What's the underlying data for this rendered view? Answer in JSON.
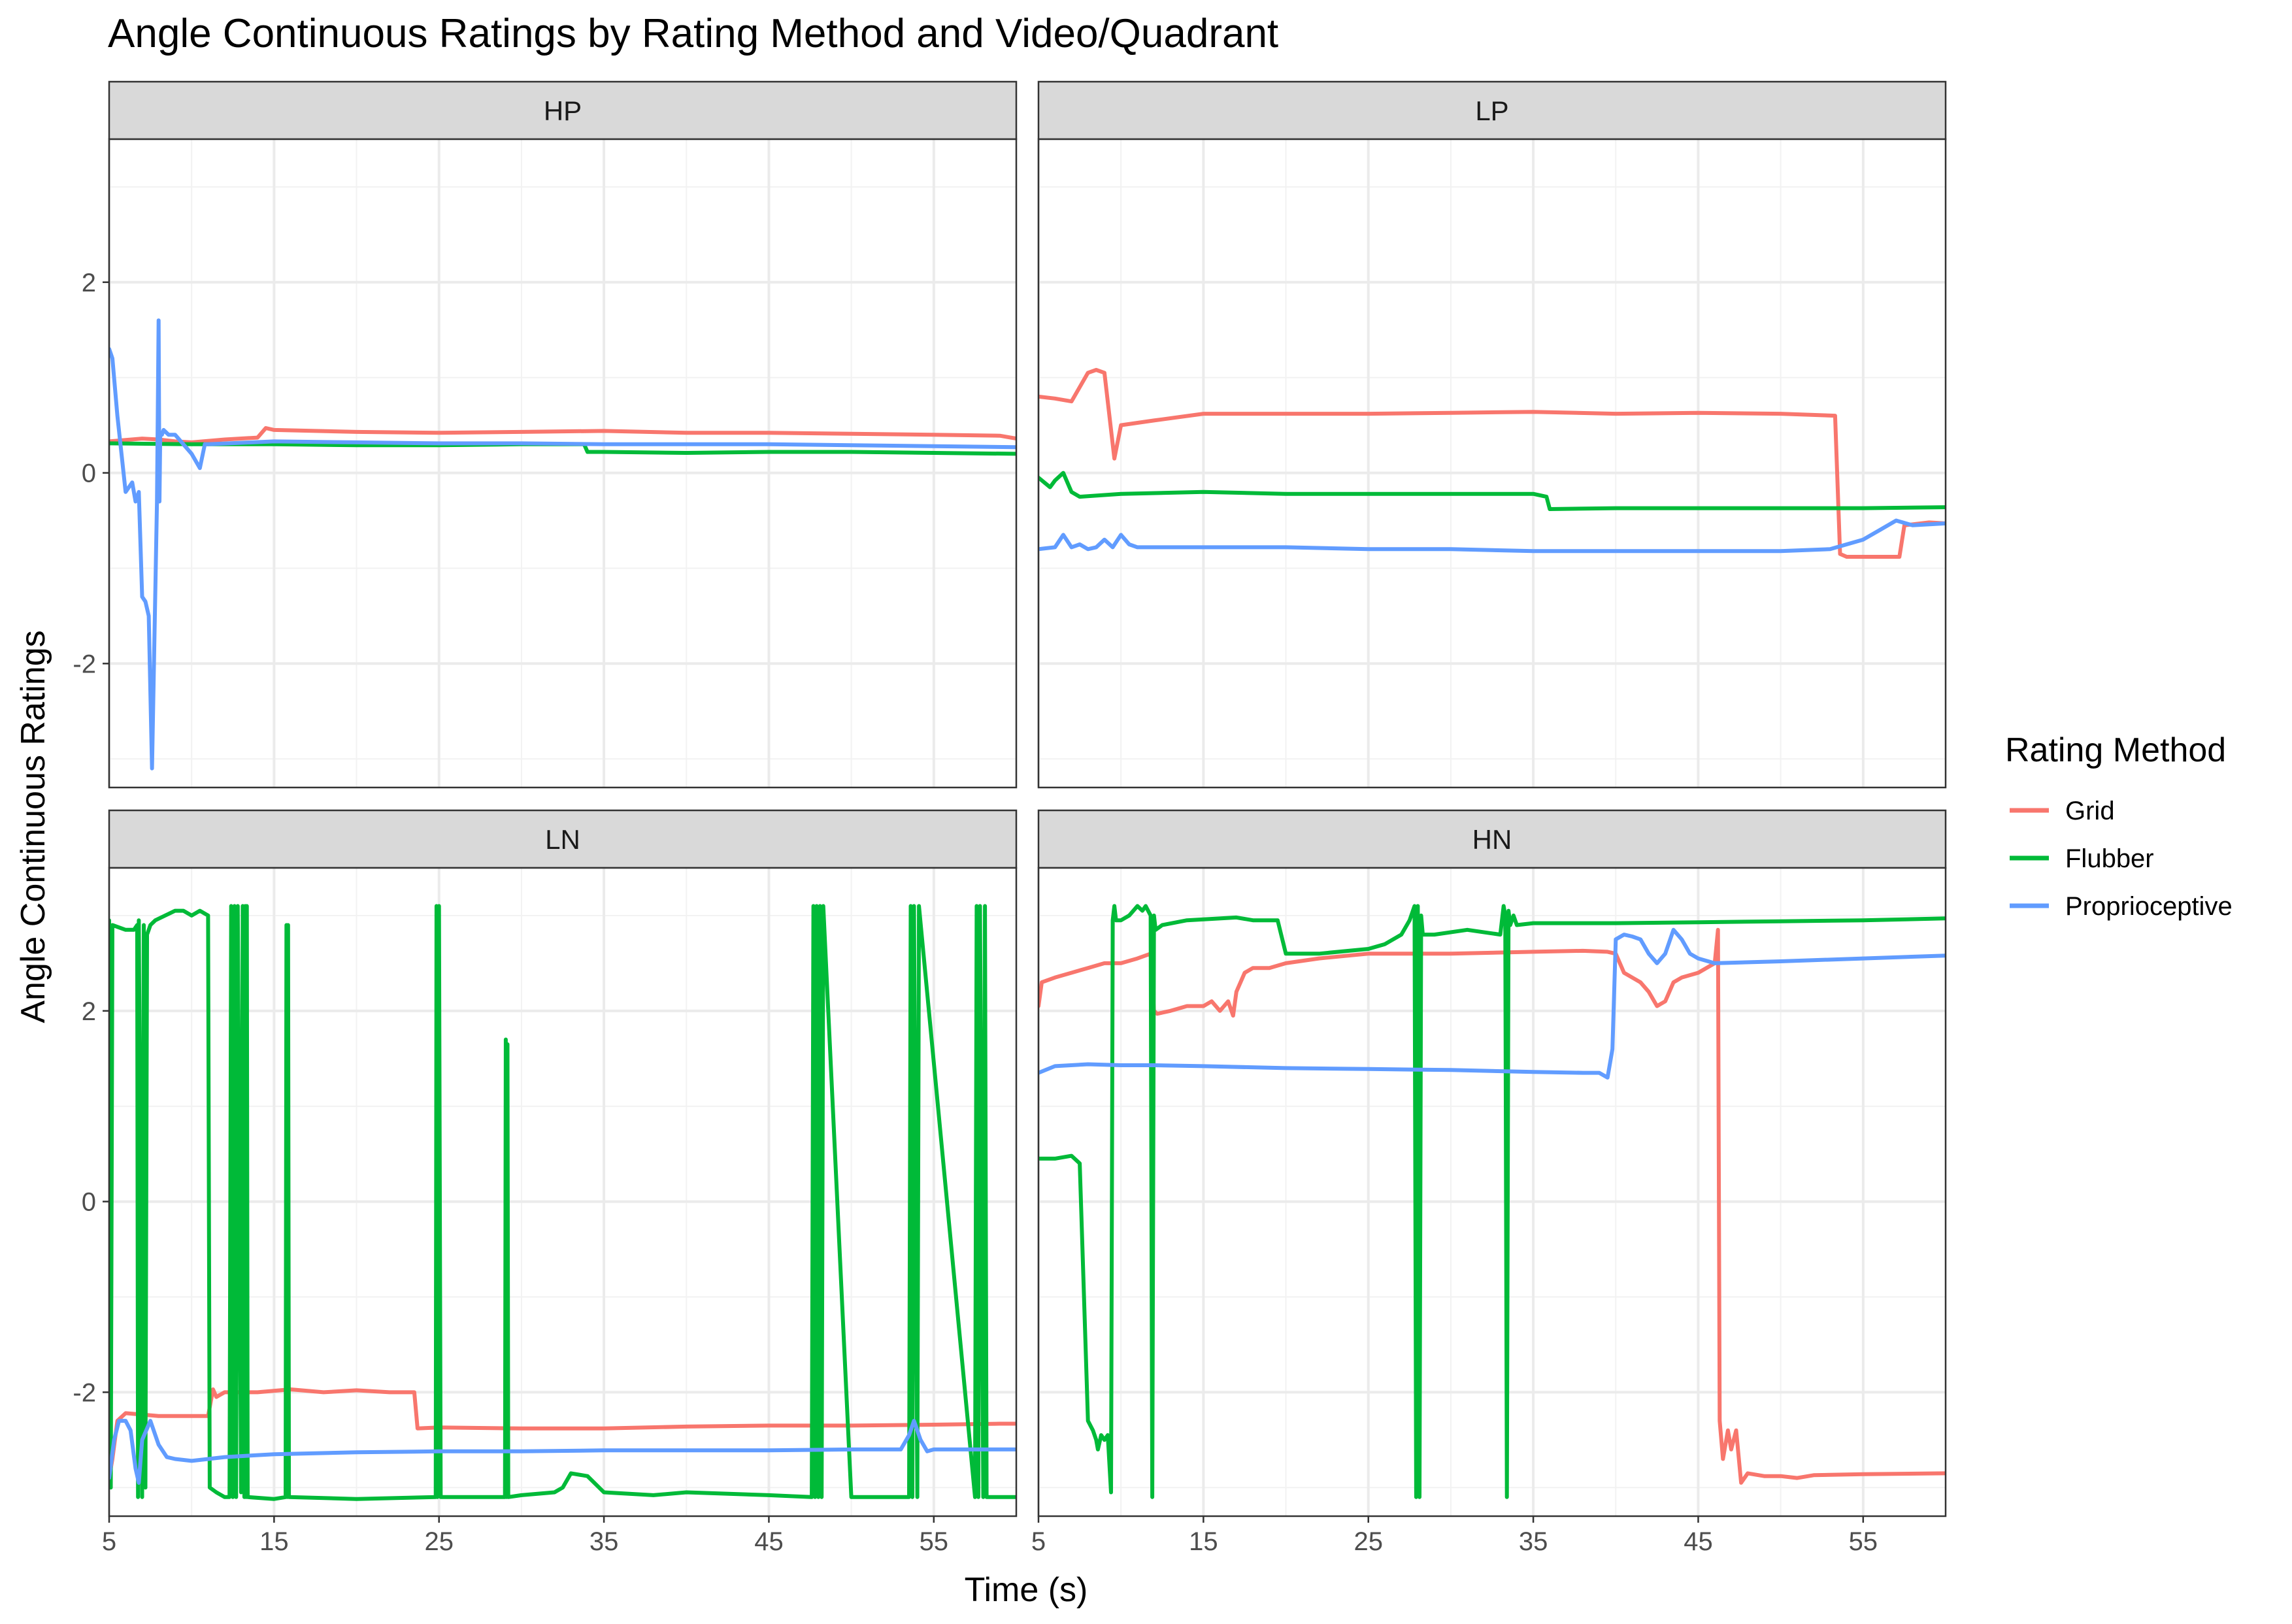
{
  "chart_data": {
    "type": "line",
    "title": "Angle Continuous Ratings by Rating Method and Video/Quadrant",
    "xlabel": "Time (s)",
    "ylabel": "Angle Continuous Ratings",
    "xlim": [
      5,
      60
    ],
    "ylim": [
      -3.3,
      3.5
    ],
    "x_ticks": [
      5,
      15,
      25,
      35,
      45,
      55
    ],
    "x_tick_labels": [
      "5",
      "15",
      "25",
      "35",
      "45",
      "55"
    ],
    "y_ticks": [
      -2,
      0,
      2
    ],
    "y_tick_labels": [
      "-2",
      "0",
      "2"
    ],
    "grid": true,
    "legend": {
      "title": "Rating Method",
      "position": "right",
      "entries": [
        "Grid",
        "Flubber",
        "Proprioceptive"
      ]
    },
    "series_colors": {
      "Grid": "#F8766D",
      "Flubber": "#00BA38",
      "Proprioceptive": "#619CFF"
    },
    "panels": [
      {
        "label": "HP",
        "series": [
          {
            "name": "Grid",
            "x": [
              5,
              7,
              8,
              9,
              10,
              12,
              14,
              14.5,
              15,
              20,
              25,
              30,
              35,
              40,
              45,
              50,
              55,
              59,
              60
            ],
            "y": [
              0.33,
              0.36,
              0.35,
              0.33,
              0.32,
              0.35,
              0.37,
              0.47,
              0.45,
              0.43,
              0.42,
              0.43,
              0.44,
              0.42,
              0.42,
              0.41,
              0.4,
              0.39,
              0.36
            ]
          },
          {
            "name": "Flubber",
            "x": [
              5,
              10,
              15,
              20,
              25,
              30,
              33.8,
              34,
              35,
              40,
              45,
              50,
              55,
              60
            ],
            "y": [
              0.31,
              0.3,
              0.3,
              0.29,
              0.29,
              0.3,
              0.3,
              0.22,
              0.22,
              0.21,
              0.22,
              0.22,
              0.21,
              0.2
            ]
          },
          {
            "name": "Proprioceptive",
            "x": [
              5,
              5.2,
              5.5,
              6,
              6.4,
              6.6,
              6.8,
              7,
              7.2,
              7.4,
              7.6,
              7.9,
              8,
              8.05,
              8.1,
              8.2,
              8.3,
              8.6,
              9,
              10,
              10.5,
              10.8,
              11,
              15,
              20,
              25,
              30,
              35,
              40,
              45,
              50,
              55,
              60
            ],
            "y": [
              1.3,
              1.2,
              0.6,
              -0.2,
              -0.1,
              -0.3,
              -0.2,
              -1.3,
              -1.35,
              -1.5,
              -3.1,
              -0.3,
              1.6,
              -0.3,
              0.4,
              0.4,
              0.45,
              0.4,
              0.4,
              0.2,
              0.05,
              0.3,
              0.3,
              0.33,
              0.32,
              0.31,
              0.31,
              0.3,
              0.3,
              0.3,
              0.29,
              0.28,
              0.27
            ]
          }
        ]
      },
      {
        "label": "LP",
        "series": [
          {
            "name": "Grid",
            "x": [
              5,
              6,
              7,
              8,
              8.5,
              9,
              9.3,
              9.6,
              10,
              12,
              15,
              20,
              25,
              30,
              35,
              40,
              45,
              50,
              53.3,
              53.6,
              54,
              55,
              56,
              57.2,
              57.5,
              59,
              60
            ],
            "y": [
              0.8,
              0.78,
              0.75,
              1.05,
              1.08,
              1.05,
              0.6,
              0.15,
              0.5,
              0.55,
              0.62,
              0.62,
              0.62,
              0.63,
              0.64,
              0.62,
              0.63,
              0.62,
              0.6,
              -0.85,
              -0.88,
              -0.88,
              -0.88,
              -0.88,
              -0.55,
              -0.52,
              -0.53
            ]
          },
          {
            "name": "Flubber",
            "x": [
              5,
              5.7,
              6,
              6.5,
              7,
              7.5,
              10,
              15,
              20,
              25,
              30,
              35,
              35.8,
              36,
              40,
              45,
              50,
              55,
              60
            ],
            "y": [
              -0.05,
              -0.15,
              -0.08,
              0.0,
              -0.2,
              -0.25,
              -0.22,
              -0.2,
              -0.22,
              -0.22,
              -0.22,
              -0.22,
              -0.25,
              -0.38,
              -0.37,
              -0.37,
              -0.37,
              -0.37,
              -0.36
            ]
          },
          {
            "name": "Proprioceptive",
            "x": [
              5,
              6,
              6.5,
              7,
              7.5,
              8,
              8.5,
              9,
              9.5,
              10,
              10.5,
              11,
              15,
              20,
              25,
              30,
              35,
              40,
              45,
              50,
              53,
              55,
              56,
              57,
              58,
              60
            ],
            "y": [
              -0.8,
              -0.78,
              -0.65,
              -0.78,
              -0.75,
              -0.8,
              -0.78,
              -0.7,
              -0.78,
              -0.65,
              -0.75,
              -0.78,
              -0.78,
              -0.78,
              -0.8,
              -0.8,
              -0.82,
              -0.82,
              -0.82,
              -0.82,
              -0.8,
              -0.7,
              -0.6,
              -0.5,
              -0.55,
              -0.53
            ]
          }
        ]
      },
      {
        "label": "LN",
        "series": [
          {
            "name": "Grid",
            "x": [
              5,
              5.2,
              5.5,
              6,
              8,
              9,
              10,
              11,
              11.3,
              11.5,
              12,
              14,
              16,
              18,
              20,
              22,
              23.5,
              23.7,
              25,
              30,
              35,
              40,
              45,
              50,
              55,
              59,
              60
            ],
            "y": [
              -2.9,
              -2.7,
              -2.3,
              -2.22,
              -2.25,
              -2.25,
              -2.25,
              -2.25,
              -1.97,
              -2.05,
              -2.0,
              -2.0,
              -1.97,
              -2.0,
              -1.98,
              -2.0,
              -2.0,
              -2.38,
              -2.37,
              -2.38,
              -2.38,
              -2.36,
              -2.35,
              -2.35,
              -2.34,
              -2.33,
              -2.33
            ]
          },
          {
            "name": "Flubber",
            "x": [
              5,
              5.1,
              5.2,
              6,
              6.5,
              6.7,
              6.75,
              6.8,
              7,
              7.1,
              7.2,
              7.3,
              7.4,
              7.5,
              7.8,
              9,
              9.5,
              10,
              10.5,
              11,
              11.1,
              11.5,
              12,
              12.3,
              12.4,
              12.5,
              12.6,
              12.7,
              12.8,
              13,
              13.1,
              13.2,
              13.25,
              13.3,
              13.35,
              13.4,
              15,
              15.7,
              15.75,
              15.8,
              15.85,
              15.9,
              20,
              24.8,
              24.85,
              24.9,
              25,
              25.1,
              27,
              29,
              29.05,
              29.1,
              29.15,
              29.2,
              30,
              32,
              32.5,
              33,
              34,
              35,
              38,
              40,
              45,
              47.6,
              47.7,
              47.8,
              47.9,
              48,
              48.1,
              48.2,
              48.3,
              50,
              53.5,
              53.6,
              53.7,
              53.8,
              54,
              54.1,
              57.5,
              57.6,
              57.7,
              57.8,
              58,
              58.1,
              58.2,
              60
            ],
            "y": [
              2.95,
              -3.0,
              2.9,
              2.85,
              2.85,
              2.9,
              -3.1,
              2.95,
              -3.1,
              2.9,
              -3.0,
              2.8,
              2.85,
              2.9,
              2.95,
              3.05,
              3.05,
              3.0,
              3.05,
              3.0,
              -3.0,
              -3.05,
              -3.1,
              -3.1,
              3.1,
              -3.1,
              3.1,
              -3.1,
              3.1,
              -3.05,
              3.1,
              -3.1,
              3.1,
              -3.1,
              3.1,
              -3.1,
              -3.12,
              -3.1,
              2.9,
              -3.1,
              2.9,
              -3.1,
              -3.12,
              -3.1,
              3.1,
              -3.1,
              3.1,
              -3.1,
              -3.1,
              -3.1,
              1.7,
              -3.1,
              1.65,
              -3.1,
              -3.08,
              -3.05,
              -3.0,
              -2.85,
              -2.88,
              -3.05,
              -3.08,
              -3.05,
              -3.08,
              -3.1,
              3.1,
              -3.1,
              3.1,
              -3.1,
              3.1,
              -3.1,
              3.1,
              -3.1,
              -3.1,
              3.1,
              -3.1,
              3.1,
              -3.1,
              3.1,
              -3.1,
              3.1,
              -3.1,
              3.1,
              -3.1,
              3.1,
              -3.1,
              -3.1
            ]
          },
          {
            "name": "Proprioceptive",
            "x": [
              5,
              5.3,
              5.6,
              6,
              6.3,
              6.6,
              6.8,
              7,
              7.5,
              8,
              8.5,
              9,
              10,
              12,
              15,
              20,
              25,
              30,
              35,
              40,
              45,
              50,
              53,
              53.5,
              53.8,
              54.2,
              54.6,
              55,
              60
            ],
            "y": [
              -2.9,
              -2.5,
              -2.3,
              -2.3,
              -2.4,
              -2.8,
              -2.95,
              -2.5,
              -2.3,
              -2.55,
              -2.68,
              -2.7,
              -2.72,
              -2.68,
              -2.65,
              -2.63,
              -2.62,
              -2.62,
              -2.61,
              -2.61,
              -2.61,
              -2.6,
              -2.6,
              -2.45,
              -2.3,
              -2.5,
              -2.62,
              -2.6,
              -2.6
            ]
          }
        ]
      },
      {
        "label": "HN",
        "series": [
          {
            "name": "Grid",
            "x": [
              5,
              5.2,
              6,
              7,
              8,
              9,
              10,
              11,
              11.8,
              12,
              12.2,
              13,
              14,
              15,
              15.5,
              16,
              16.5,
              16.8,
              17,
              17.5,
              18,
              19,
              20,
              22,
              25,
              30,
              35,
              38,
              39.5,
              40,
              40.5,
              41,
              41.5,
              42,
              42.5,
              43,
              43.5,
              44,
              45,
              46,
              46.2,
              46.3,
              46.5,
              46.8,
              47,
              47.3,
              47.6,
              48,
              49,
              50,
              51,
              52,
              55,
              60
            ],
            "y": [
              2.05,
              2.3,
              2.35,
              2.4,
              2.45,
              2.5,
              2.5,
              2.55,
              2.6,
              2.0,
              1.97,
              2.0,
              2.05,
              2.05,
              2.1,
              2.0,
              2.1,
              1.95,
              2.2,
              2.4,
              2.45,
              2.45,
              2.5,
              2.55,
              2.6,
              2.6,
              2.62,
              2.63,
              2.62,
              2.6,
              2.4,
              2.35,
              2.3,
              2.2,
              2.05,
              2.1,
              2.3,
              2.35,
              2.4,
              2.5,
              2.85,
              -2.3,
              -2.7,
              -2.4,
              -2.6,
              -2.4,
              -2.95,
              -2.85,
              -2.88,
              -2.88,
              -2.9,
              -2.87,
              -2.86,
              -2.85
            ]
          },
          {
            "name": "Flubber",
            "x": [
              5,
              6,
              7,
              7.5,
              8,
              8.3,
              8.5,
              8.6,
              8.8,
              9,
              9.2,
              9.4,
              9.5,
              9.6,
              9.7,
              10,
              10.5,
              11,
              11.3,
              11.5,
              11.8,
              11.9,
              12,
              12.1,
              12.5,
              14,
              17,
              18,
              19.5,
              20,
              22,
              25,
              26,
              27,
              27.5,
              27.8,
              27.9,
              28,
              28.1,
              28.2,
              28.3,
              29,
              31,
              33,
              33.2,
              33.3,
              33.4,
              33.5,
              33.6,
              33.8,
              34,
              35,
              40,
              45,
              50,
              55,
              60
            ],
            "y": [
              0.45,
              0.45,
              0.48,
              0.4,
              -2.3,
              -2.4,
              -2.5,
              -2.6,
              -2.45,
              -2.5,
              -2.45,
              -3.05,
              2.95,
              3.1,
              2.95,
              2.95,
              3.0,
              3.1,
              3.05,
              3.1,
              3.0,
              -3.1,
              3.0,
              2.85,
              2.9,
              2.95,
              2.98,
              2.95,
              2.95,
              2.6,
              2.6,
              2.65,
              2.7,
              2.8,
              2.95,
              3.1,
              -3.1,
              3.1,
              -3.1,
              3.0,
              2.8,
              2.8,
              2.85,
              2.8,
              3.1,
              3.0,
              -3.1,
              3.05,
              2.9,
              3.0,
              2.9,
              2.92,
              2.92,
              2.93,
              2.94,
              2.95,
              2.97
            ]
          },
          {
            "name": "Proprioceptive",
            "x": [
              5,
              6,
              8,
              10,
              12,
              15,
              20,
              25,
              30,
              35,
              38,
              39,
              39.5,
              39.8,
              40,
              40.5,
              41,
              41.5,
              42,
              42.5,
              43,
              43.5,
              44,
              44.5,
              45,
              46,
              50,
              55,
              60
            ],
            "y": [
              1.35,
              1.42,
              1.44,
              1.43,
              1.43,
              1.42,
              1.4,
              1.39,
              1.38,
              1.36,
              1.35,
              1.35,
              1.3,
              1.6,
              2.75,
              2.8,
              2.78,
              2.75,
              2.6,
              2.5,
              2.6,
              2.85,
              2.75,
              2.6,
              2.55,
              2.5,
              2.52,
              2.55,
              2.58
            ]
          }
        ]
      }
    ]
  }
}
